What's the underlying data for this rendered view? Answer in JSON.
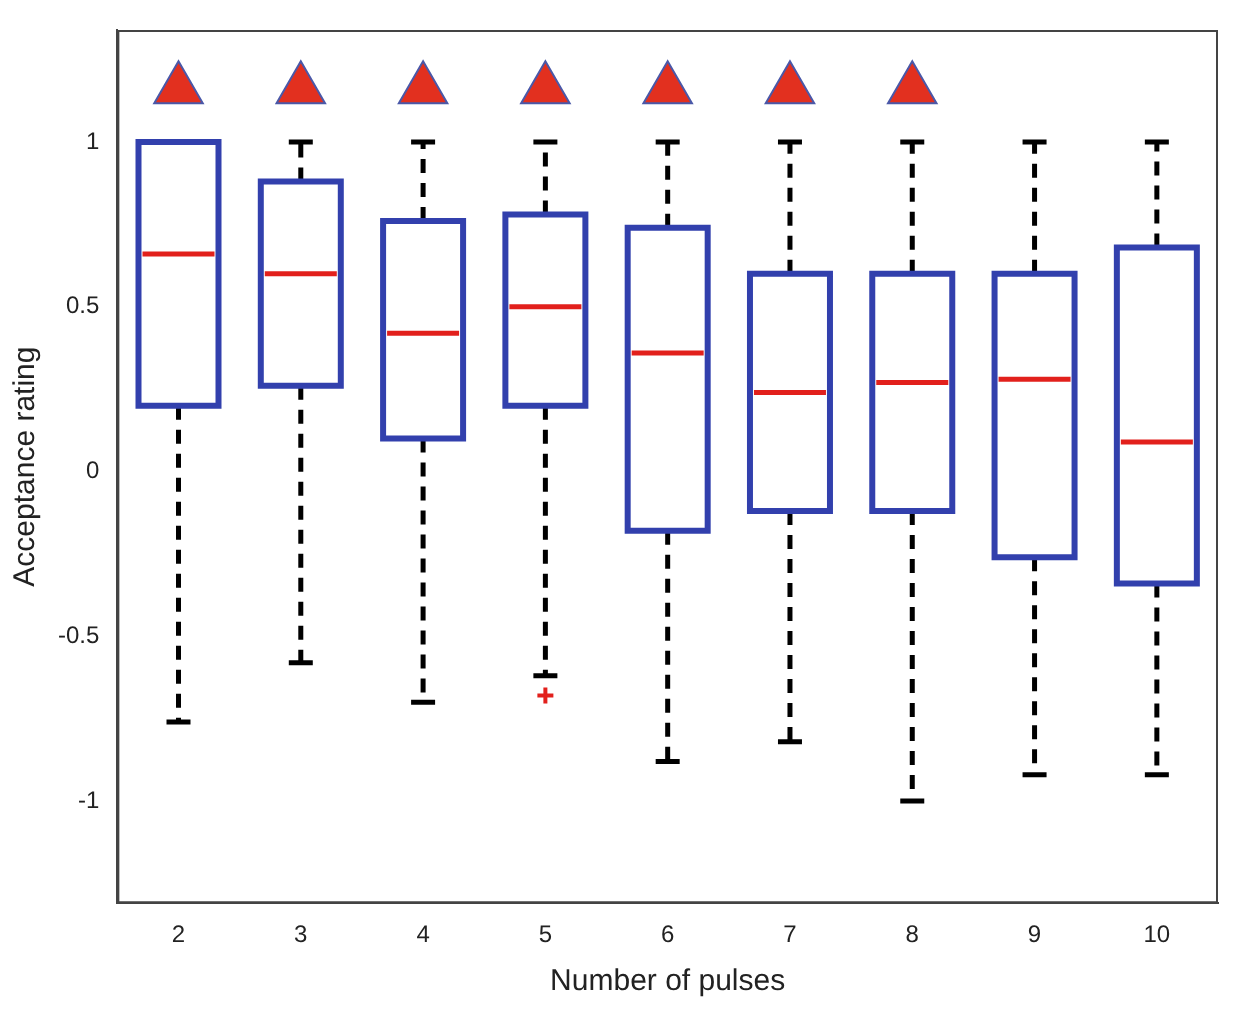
{
  "chart_data": {
    "type": "box",
    "xlabel": "Number of pulses",
    "ylabel": "Acceptance rating",
    "categories": [
      "2",
      "3",
      "4",
      "5",
      "6",
      "7",
      "8",
      "9",
      "10"
    ],
    "boxes": [
      {
        "low": -0.76,
        "q1": 0.2,
        "median": 0.66,
        "q3": 1,
        "high": 1
      },
      {
        "low": -0.58,
        "q1": 0.26,
        "median": 0.6,
        "q3": 0.88,
        "high": 1
      },
      {
        "low": -0.7,
        "q1": 0.1,
        "median": 0.42,
        "q3": 0.76,
        "high": 1
      },
      {
        "low": -0.62,
        "q1": 0.2,
        "median": 0.5,
        "q3": 0.78,
        "high": 1,
        "outliers": [
          -0.68
        ]
      },
      {
        "low": -0.88,
        "q1": -0.18,
        "median": 0.36,
        "q3": 0.74,
        "high": 1
      },
      {
        "low": -0.82,
        "q1": -0.12,
        "median": 0.24,
        "q3": 0.6,
        "high": 1
      },
      {
        "low": -1,
        "q1": -0.12,
        "median": 0.27,
        "q3": 0.6,
        "high": 1
      },
      {
        "low": -0.92,
        "q1": -0.26,
        "median": 0.28,
        "q3": 0.6,
        "high": 1
      },
      {
        "low": -0.92,
        "q1": -0.34,
        "median": 0.09,
        "q3": 0.68,
        "high": 1
      }
    ],
    "color": "#3240ad",
    "series": [
      {
        "type": "scatter",
        "x": [
          "2",
          "3",
          "4",
          "5",
          "6",
          "7",
          "8"
        ],
        "values": [
          1.16,
          1.16,
          1.16,
          1.16,
          1.16,
          1.16,
          1.16
        ],
        "color": "#e2301f",
        "marker": "triangle"
      }
    ],
    "ylim": [
      -1.31,
      1.34
    ],
    "yticks": [
      -1,
      -0.5,
      0,
      0.5,
      1
    ],
    "grid": false,
    "legend": false
  }
}
